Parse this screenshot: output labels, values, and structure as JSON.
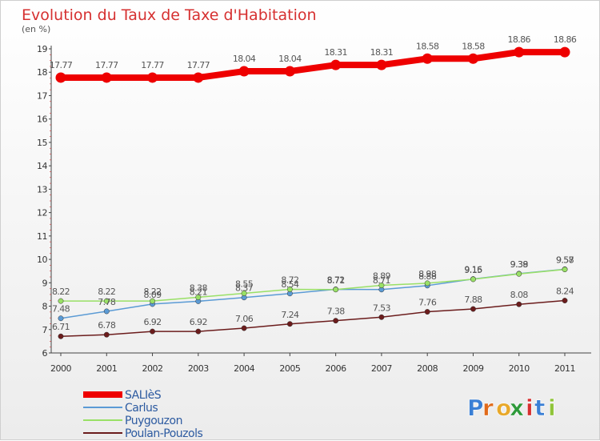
{
  "chart_data": {
    "type": "line",
    "title": "Evolution du Taux de Taxe d'Habitation",
    "subtitle": "(en %)",
    "x": [
      "2000",
      "2001",
      "2002",
      "2003",
      "2004",
      "2005",
      "2006",
      "2007",
      "2008",
      "2009",
      "2010",
      "2011"
    ],
    "ylim": [
      6,
      19
    ],
    "yticks": [
      "6",
      "7",
      "8",
      "9",
      "10",
      "11",
      "12",
      "13",
      "14",
      "15",
      "16",
      "17",
      "18",
      "19"
    ],
    "grid": false,
    "legend_position": "bottom-left",
    "series": [
      {
        "name": "SALIèS",
        "color": "#ee0000",
        "values": [
          17.77,
          17.77,
          17.77,
          17.77,
          18.04,
          18.04,
          18.31,
          18.31,
          18.58,
          18.58,
          18.86,
          18.86
        ]
      },
      {
        "name": "Carlus",
        "color": "#5b9bd5",
        "values": [
          7.48,
          7.78,
          8.09,
          8.21,
          8.37,
          8.54,
          8.72,
          8.71,
          8.88,
          9.16,
          9.39,
          9.58
        ]
      },
      {
        "name": "Puygouzon",
        "color": "#99e066",
        "values": [
          8.22,
          8.22,
          8.22,
          8.38,
          8.55,
          8.72,
          8.71,
          8.89,
          8.98,
          9.15,
          9.38,
          9.57
        ]
      },
      {
        "name": "Poulan-Pouzols",
        "color": "#6b1c1c",
        "values": [
          6.71,
          6.78,
          6.92,
          6.92,
          7.06,
          7.24,
          7.38,
          7.53,
          7.76,
          7.88,
          8.08,
          8.24
        ]
      }
    ]
  },
  "brand": {
    "letters": [
      "P",
      "r",
      "o",
      "x",
      "i",
      "t",
      "i"
    ],
    "colors": [
      "#3a7fd5",
      "#e06a1a",
      "#e8a82a",
      "#2e9a3a",
      "#d62f2f",
      "#3a7fd5",
      "#8fc43a"
    ]
  }
}
